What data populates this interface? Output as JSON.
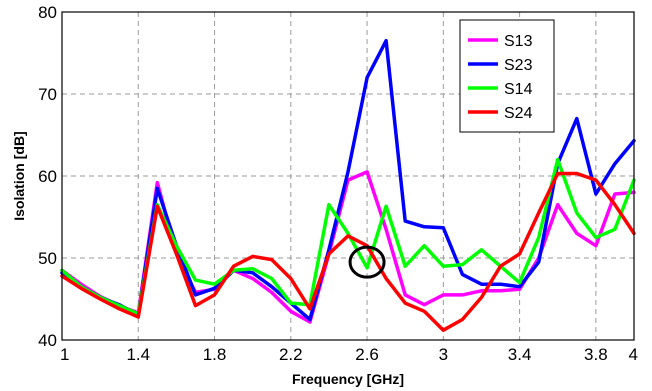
{
  "chart_data": {
    "type": "line",
    "xlabel": "Frequency [GHz]",
    "ylabel": "Isolation [dB]",
    "xlim": [
      1,
      4
    ],
    "ylim": [
      40,
      80
    ],
    "xticks": [
      1,
      1.4,
      1.8,
      2.2,
      2.6,
      3,
      3.4,
      3.8,
      4
    ],
    "xtick_labels": [
      "1",
      "1.4",
      "1.8",
      "2.2",
      "2.6",
      "3",
      "3.4",
      "3.8",
      "4"
    ],
    "yticks": [
      40,
      50,
      60,
      70,
      80
    ],
    "ytick_labels": [
      "40",
      "50",
      "60",
      "70",
      "80"
    ],
    "grid": true,
    "legend_position": "top-right",
    "annotation": {
      "type": "circle",
      "x": 2.6,
      "y": 49.5
    },
    "series": [
      {
        "name": "S13",
        "color": "#ff00ff",
        "x": [
          1,
          1.1,
          1.2,
          1.3,
          1.4,
          1.5,
          1.6,
          1.7,
          1.8,
          1.9,
          2.0,
          2.1,
          2.2,
          2.3,
          2.4,
          2.5,
          2.6,
          2.7,
          2.8,
          2.9,
          3.0,
          3.1,
          3.2,
          3.3,
          3.4,
          3.5,
          3.6,
          3.7,
          3.8,
          3.9,
          4.0
        ],
        "y": [
          48.5,
          46.8,
          45.3,
          44.2,
          43.3,
          59.2,
          50.5,
          45.8,
          46.2,
          48.5,
          47.5,
          45.8,
          43.5,
          42.2,
          50.5,
          59.5,
          60.5,
          53.5,
          45.5,
          44.3,
          45.5,
          45.5,
          46.0,
          46.0,
          46.2,
          50.0,
          56.5,
          53.0,
          51.5,
          57.8,
          58.0
        ]
      },
      {
        "name": "S23",
        "color": "#0000ff",
        "x": [
          1,
          1.1,
          1.2,
          1.3,
          1.4,
          1.5,
          1.6,
          1.7,
          1.8,
          1.9,
          2.0,
          2.1,
          2.2,
          2.3,
          2.4,
          2.5,
          2.6,
          2.7,
          2.8,
          2.9,
          3.0,
          3.1,
          3.2,
          3.3,
          3.4,
          3.5,
          3.6,
          3.7,
          3.8,
          3.9,
          4.0
        ],
        "y": [
          48.2,
          46.5,
          45.2,
          44.3,
          43.0,
          58.5,
          51.5,
          45.5,
          46.3,
          48.5,
          48.2,
          46.5,
          44.5,
          42.5,
          51.0,
          60.5,
          72.0,
          76.5,
          54.5,
          53.8,
          53.7,
          48.0,
          46.8,
          46.8,
          46.5,
          49.5,
          61.5,
          67.0,
          57.8,
          61.5,
          64.3
        ]
      },
      {
        "name": "S14",
        "color": "#00ff00",
        "x": [
          1,
          1.1,
          1.2,
          1.3,
          1.4,
          1.5,
          1.6,
          1.7,
          1.8,
          1.9,
          2.0,
          2.1,
          2.2,
          2.3,
          2.4,
          2.5,
          2.6,
          2.7,
          2.8,
          2.9,
          3.0,
          3.1,
          3.2,
          3.3,
          3.4,
          3.5,
          3.6,
          3.7,
          3.8,
          3.9,
          4.0
        ],
        "y": [
          48.5,
          46.5,
          45.2,
          44.2,
          43.2,
          56.5,
          51.5,
          47.3,
          46.8,
          48.5,
          48.7,
          47.5,
          44.5,
          44.3,
          56.5,
          53.0,
          48.8,
          56.3,
          49.0,
          51.5,
          49.0,
          49.2,
          51.0,
          49.0,
          47.0,
          52.5,
          62.0,
          55.5,
          52.5,
          53.5,
          59.5
        ]
      },
      {
        "name": "S24",
        "color": "#ff0000",
        "x": [
          1,
          1.1,
          1.2,
          1.3,
          1.4,
          1.5,
          1.6,
          1.7,
          1.8,
          1.9,
          2.0,
          2.1,
          2.2,
          2.3,
          2.4,
          2.5,
          2.6,
          2.7,
          2.8,
          2.9,
          3.0,
          3.1,
          3.2,
          3.3,
          3.4,
          3.5,
          3.6,
          3.7,
          3.8,
          3.9,
          4.0
        ],
        "y": [
          47.8,
          46.3,
          45.0,
          43.8,
          42.8,
          56.3,
          50.5,
          44.2,
          45.5,
          49.0,
          50.2,
          49.8,
          47.5,
          43.8,
          50.5,
          52.7,
          51.5,
          47.5,
          44.5,
          43.5,
          41.2,
          42.5,
          45.2,
          49.0,
          50.5,
          55.5,
          60.3,
          60.3,
          59.5,
          56.5,
          53.0
        ]
      }
    ]
  }
}
